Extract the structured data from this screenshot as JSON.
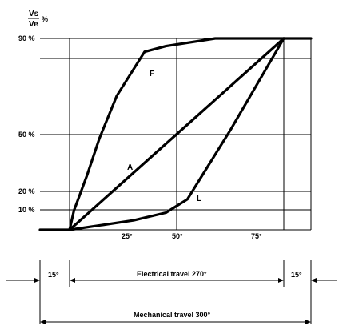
{
  "chart_data": {
    "type": "line",
    "ylabel_numerator": "Vs",
    "ylabel_denominator": "Ve",
    "ylabel_unit": "%",
    "x_ticks": [
      {
        "value": 25,
        "label": "25°"
      },
      {
        "value": 50,
        "label": "50°"
      },
      {
        "value": 75,
        "label": "75°"
      }
    ],
    "y_ticks": [
      {
        "value": 90,
        "label": "90 %"
      },
      {
        "value": 50,
        "label": "50 %"
      },
      {
        "value": 20,
        "label": "20 %"
      },
      {
        "value": 10,
        "label": "10 %"
      }
    ],
    "series": [
      {
        "name": "F",
        "points": [
          [
            0,
            0
          ],
          [
            2,
            10
          ],
          [
            8,
            28
          ],
          [
            14,
            48
          ],
          [
            22,
            70
          ],
          [
            35,
            93
          ],
          [
            45,
            96
          ],
          [
            68,
            100
          ],
          [
            100,
            100
          ]
        ]
      },
      {
        "name": "A",
        "points": [
          [
            0,
            0
          ],
          [
            100,
            100
          ]
        ]
      },
      {
        "name": "L",
        "points": [
          [
            0,
            0
          ],
          [
            30,
            5
          ],
          [
            45,
            9
          ],
          [
            55,
            16
          ],
          [
            75,
            52
          ],
          [
            100,
            100
          ]
        ]
      }
    ],
    "annotations": {
      "electrical_travel": "Electrical travel 270°",
      "mechanical_travel": "Mechanical travel 300°",
      "left_margin": "15°",
      "right_margin": "15°"
    }
  }
}
